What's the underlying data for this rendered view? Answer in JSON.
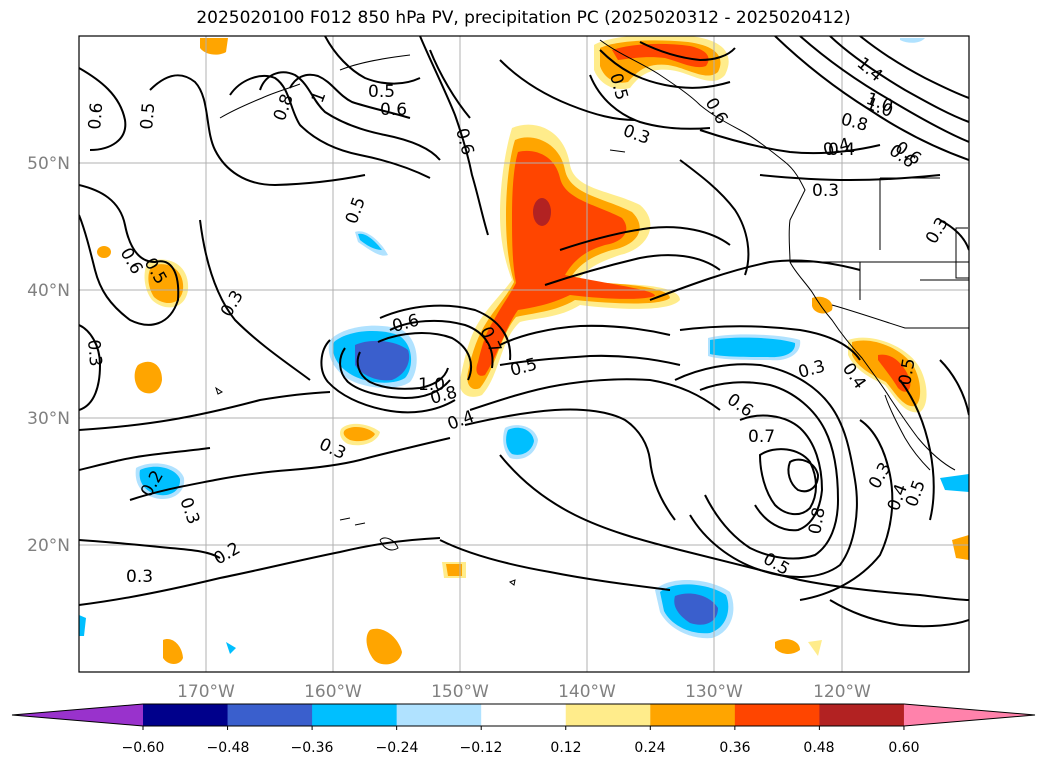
{
  "title": "2025020100 F012 850 hPa PV, precipitation PC (2025020312 - 2025020412)",
  "map": {
    "projection": "PlateCarree",
    "lon_range": [
      -180,
      -110
    ],
    "lat_range": [
      10,
      60
    ],
    "lat_labels": [
      "50°N",
      "40°N",
      "30°N",
      "20°N"
    ],
    "lon_labels": [
      "170°W",
      "160°W",
      "150°W",
      "140°W",
      "130°W",
      "120°W"
    ],
    "grid": true
  },
  "colorbar": {
    "orientation": "horizontal",
    "extend": "both",
    "tick_labels": [
      "−0.60",
      "−0.48",
      "−0.36",
      "−0.24",
      "−0.12",
      "0.12",
      "0.24",
      "0.36",
      "0.48",
      "0.60"
    ],
    "colors": [
      "#9932cc",
      "#00008b",
      "#3a5fcd",
      "#00bfff",
      "#b0e2ff",
      "#ffffff",
      "#ffec8b",
      "#ffa500",
      "#ff4500",
      "#b22222",
      "#ff82ab"
    ]
  },
  "contour_labels": [
    {
      "text": "0.6"
    },
    {
      "text": "0.5"
    },
    {
      "text": "0.8"
    },
    {
      "text": "1"
    },
    {
      "text": "0.6"
    },
    {
      "text": "0.5"
    },
    {
      "text": "0.6"
    },
    {
      "text": "0.3"
    },
    {
      "text": "0.5"
    },
    {
      "text": "0.6"
    },
    {
      "text": "1.0"
    },
    {
      "text": "0.4"
    },
    {
      "text": "0.6"
    },
    {
      "text": "1.4"
    },
    {
      "text": "1.0"
    },
    {
      "text": "0.8"
    },
    {
      "text": "0.6"
    },
    {
      "text": "0.4"
    },
    {
      "text": "0.3"
    },
    {
      "text": "0.5"
    },
    {
      "text": "0.6"
    },
    {
      "text": "0.5"
    },
    {
      "text": "0.3"
    },
    {
      "text": "0.3"
    },
    {
      "text": "0.6"
    },
    {
      "text": "0.7"
    },
    {
      "text": "1.0"
    },
    {
      "text": "0.8"
    },
    {
      "text": "0.5"
    },
    {
      "text": "0.4"
    },
    {
      "text": "0.3"
    },
    {
      "text": "0.6"
    },
    {
      "text": "0.7"
    },
    {
      "text": "0.3"
    },
    {
      "text": "0.4"
    },
    {
      "text": "0.5"
    },
    {
      "text": "0.2"
    },
    {
      "text": "0.3"
    },
    {
      "text": "0.2"
    },
    {
      "text": "0.3"
    },
    {
      "text": "0.8"
    },
    {
      "text": "0.5"
    },
    {
      "text": "0.3"
    },
    {
      "text": "0.4"
    },
    {
      "text": "0.5"
    },
    {
      "text": "0.3"
    }
  ]
}
